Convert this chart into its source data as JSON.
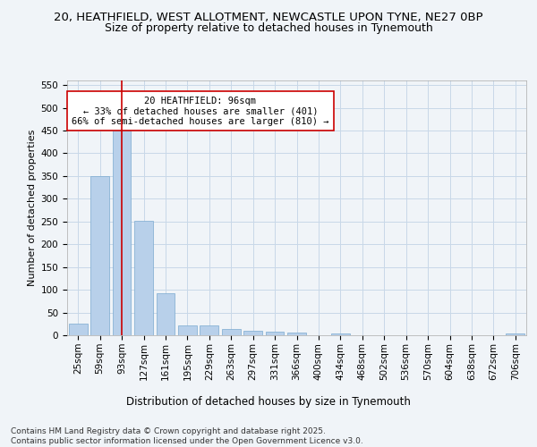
{
  "title_line1": "20, HEATHFIELD, WEST ALLOTMENT, NEWCASTLE UPON TYNE, NE27 0BP",
  "title_line2": "Size of property relative to detached houses in Tynemouth",
  "xlabel": "Distribution of detached houses by size in Tynemouth",
  "ylabel": "Number of detached properties",
  "categories": [
    "25sqm",
    "59sqm",
    "93sqm",
    "127sqm",
    "161sqm",
    "195sqm",
    "229sqm",
    "263sqm",
    "297sqm",
    "331sqm",
    "366sqm",
    "400sqm",
    "434sqm",
    "468sqm",
    "502sqm",
    "536sqm",
    "570sqm",
    "604sqm",
    "638sqm",
    "672sqm",
    "706sqm"
  ],
  "values": [
    25,
    350,
    450,
    252,
    92,
    22,
    22,
    13,
    10,
    8,
    6,
    0,
    4,
    0,
    0,
    0,
    0,
    0,
    0,
    0,
    4
  ],
  "bar_color": "#b8d0ea",
  "bar_edge_color": "#7aaad0",
  "vline_x": 2,
  "vline_color": "#cc0000",
  "annotation_text": "20 HEATHFIELD: 96sqm\n← 33% of detached houses are smaller (401)\n66% of semi-detached houses are larger (810) →",
  "annotation_box_color": "#ffffff",
  "annotation_box_edge_color": "#cc0000",
  "ylim": [
    0,
    560
  ],
  "yticks": [
    0,
    50,
    100,
    150,
    200,
    250,
    300,
    350,
    400,
    450,
    500,
    550
  ],
  "background_color": "#f0f4f8",
  "grid_color": "#c8d8e8",
  "footer_text": "Contains HM Land Registry data © Crown copyright and database right 2025.\nContains public sector information licensed under the Open Government Licence v3.0.",
  "title_fontsize": 9.5,
  "subtitle_fontsize": 9,
  "xlabel_fontsize": 8.5,
  "ylabel_fontsize": 8,
  "tick_fontsize": 7.5,
  "annotation_fontsize": 7.5,
  "footer_fontsize": 6.5
}
